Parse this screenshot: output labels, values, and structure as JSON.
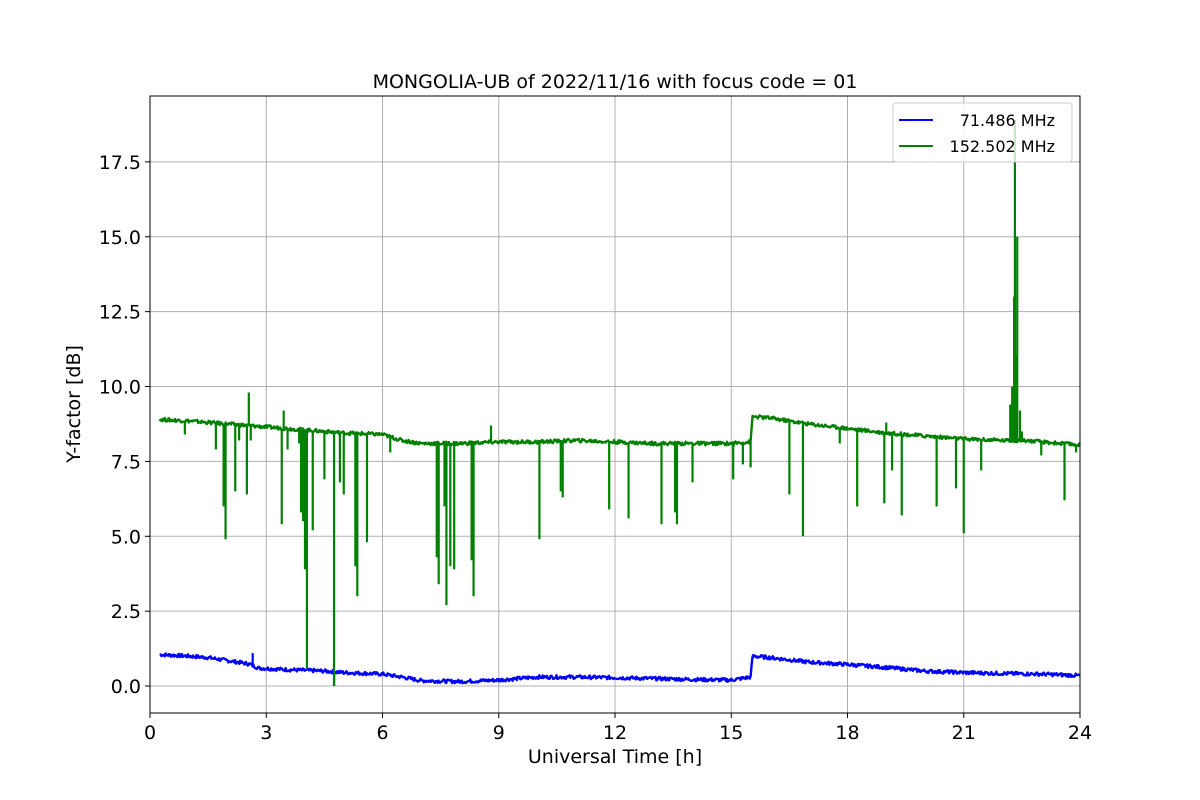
{
  "chart_data": {
    "type": "line",
    "title": "MONGOLIA-UB of 2022/11/16 with focus code = 01",
    "xlabel": "Universal Time [h]",
    "ylabel": "Y-factor [dB]",
    "xlim": [
      0,
      24
    ],
    "ylim": [
      -0.9,
      19.7
    ],
    "x_ticks": [
      0,
      3,
      6,
      9,
      12,
      15,
      18,
      21,
      24
    ],
    "x_tick_labels": [
      "0",
      "3",
      "6",
      "9",
      "12",
      "15",
      "18",
      "21",
      "24"
    ],
    "y_ticks": [
      0,
      2.5,
      5,
      7.5,
      10,
      12.5,
      15,
      17.5
    ],
    "y_tick_labels": [
      "0.0",
      "2.5",
      "5.0",
      "7.5",
      "10.0",
      "12.5",
      "15.0",
      "17.5"
    ],
    "grid": true,
    "legend_position": "top-right",
    "series": [
      {
        "name": "71.486 MHz",
        "color": "#0000ff",
        "base": [
          [
            0.25,
            1.05
          ],
          [
            1.0,
            1.0
          ],
          [
            1.5,
            0.95
          ],
          [
            2.0,
            0.85
          ],
          [
            2.5,
            0.75
          ],
          [
            2.6,
            0.72
          ],
          [
            2.8,
            0.6
          ],
          [
            3.5,
            0.55
          ],
          [
            4.5,
            0.5
          ],
          [
            5.0,
            0.45
          ],
          [
            6.0,
            0.4
          ],
          [
            6.5,
            0.3
          ],
          [
            7.0,
            0.18
          ],
          [
            8.0,
            0.15
          ],
          [
            9.0,
            0.2
          ],
          [
            10.0,
            0.3
          ],
          [
            11.0,
            0.3
          ],
          [
            12.0,
            0.28
          ],
          [
            13.0,
            0.25
          ],
          [
            14.0,
            0.22
          ],
          [
            15.0,
            0.2
          ],
          [
            15.5,
            0.3
          ],
          [
            15.55,
            1.0
          ],
          [
            16.0,
            0.95
          ],
          [
            17.0,
            0.8
          ],
          [
            18.0,
            0.72
          ],
          [
            19.0,
            0.62
          ],
          [
            20.0,
            0.5
          ],
          [
            21.0,
            0.45
          ],
          [
            22.0,
            0.42
          ],
          [
            23.0,
            0.4
          ],
          [
            24.0,
            0.35
          ]
        ],
        "spikes": [
          [
            2.65,
            1.1
          ],
          [
            4.75,
            0.0
          ]
        ]
      },
      {
        "name": "152.502 MHz",
        "color": "#008000",
        "base": [
          [
            0.25,
            8.9
          ],
          [
            1.0,
            8.85
          ],
          [
            2.0,
            8.75
          ],
          [
            3.0,
            8.65
          ],
          [
            4.0,
            8.55
          ],
          [
            5.0,
            8.45
          ],
          [
            6.0,
            8.4
          ],
          [
            6.5,
            8.2
          ],
          [
            7.0,
            8.1
          ],
          [
            8.0,
            8.1
          ],
          [
            9.0,
            8.15
          ],
          [
            10.0,
            8.15
          ],
          [
            11.0,
            8.2
          ],
          [
            12.0,
            8.15
          ],
          [
            13.0,
            8.1
          ],
          [
            14.0,
            8.1
          ],
          [
            15.0,
            8.1
          ],
          [
            15.5,
            8.15
          ],
          [
            15.55,
            9.0
          ],
          [
            16.0,
            8.95
          ],
          [
            17.0,
            8.75
          ],
          [
            18.0,
            8.6
          ],
          [
            19.0,
            8.45
          ],
          [
            20.0,
            8.35
          ],
          [
            21.0,
            8.25
          ],
          [
            22.0,
            8.2
          ],
          [
            22.2,
            8.2
          ],
          [
            22.6,
            8.2
          ],
          [
            23.0,
            8.15
          ],
          [
            24.0,
            8.05
          ]
        ],
        "spikes": [
          [
            0.9,
            8.4
          ],
          [
            1.7,
            7.9
          ],
          [
            1.9,
            6.0
          ],
          [
            1.95,
            4.9
          ],
          [
            2.2,
            6.5
          ],
          [
            2.3,
            8.2
          ],
          [
            2.5,
            6.4
          ],
          [
            2.55,
            9.8
          ],
          [
            2.6,
            8.2
          ],
          [
            3.4,
            5.4
          ],
          [
            3.45,
            9.2
          ],
          [
            3.55,
            7.9
          ],
          [
            3.85,
            8.1
          ],
          [
            3.9,
            5.8
          ],
          [
            3.95,
            5.5
          ],
          [
            4.0,
            3.9
          ],
          [
            4.05,
            0.6
          ],
          [
            4.2,
            5.2
          ],
          [
            4.5,
            6.9
          ],
          [
            4.75,
            0.0
          ],
          [
            4.9,
            6.8
          ],
          [
            5.0,
            6.4
          ],
          [
            5.3,
            4.0
          ],
          [
            5.35,
            3.0
          ],
          [
            5.6,
            4.8
          ],
          [
            6.2,
            7.8
          ],
          [
            7.4,
            4.3
          ],
          [
            7.45,
            3.4
          ],
          [
            7.6,
            6.0
          ],
          [
            7.65,
            2.7
          ],
          [
            7.75,
            4.0
          ],
          [
            7.85,
            3.9
          ],
          [
            8.3,
            4.2
          ],
          [
            8.35,
            3.0
          ],
          [
            8.8,
            8.7
          ],
          [
            10.05,
            4.9
          ],
          [
            10.6,
            6.5
          ],
          [
            10.65,
            6.3
          ],
          [
            11.85,
            5.9
          ],
          [
            12.35,
            5.6
          ],
          [
            13.2,
            5.4
          ],
          [
            13.55,
            5.8
          ],
          [
            13.6,
            5.4
          ],
          [
            14.0,
            6.8
          ],
          [
            15.05,
            6.9
          ],
          [
            15.3,
            7.4
          ],
          [
            15.5,
            7.3
          ],
          [
            16.5,
            6.4
          ],
          [
            16.85,
            5.0
          ],
          [
            17.8,
            8.1
          ],
          [
            18.25,
            6.0
          ],
          [
            18.95,
            6.1
          ],
          [
            19.0,
            8.8
          ],
          [
            19.15,
            7.2
          ],
          [
            19.4,
            5.7
          ],
          [
            20.3,
            6.0
          ],
          [
            20.8,
            6.6
          ],
          [
            21.0,
            5.1
          ],
          [
            21.45,
            7.2
          ],
          [
            22.2,
            9.4
          ],
          [
            22.25,
            10.0
          ],
          [
            22.3,
            13.0
          ],
          [
            22.32,
            18.9
          ],
          [
            22.35,
            11.0
          ],
          [
            22.38,
            15.0
          ],
          [
            22.45,
            9.2
          ],
          [
            22.5,
            8.5
          ],
          [
            23.0,
            7.7
          ],
          [
            23.6,
            6.2
          ],
          [
            23.9,
            7.8
          ]
        ]
      }
    ]
  }
}
